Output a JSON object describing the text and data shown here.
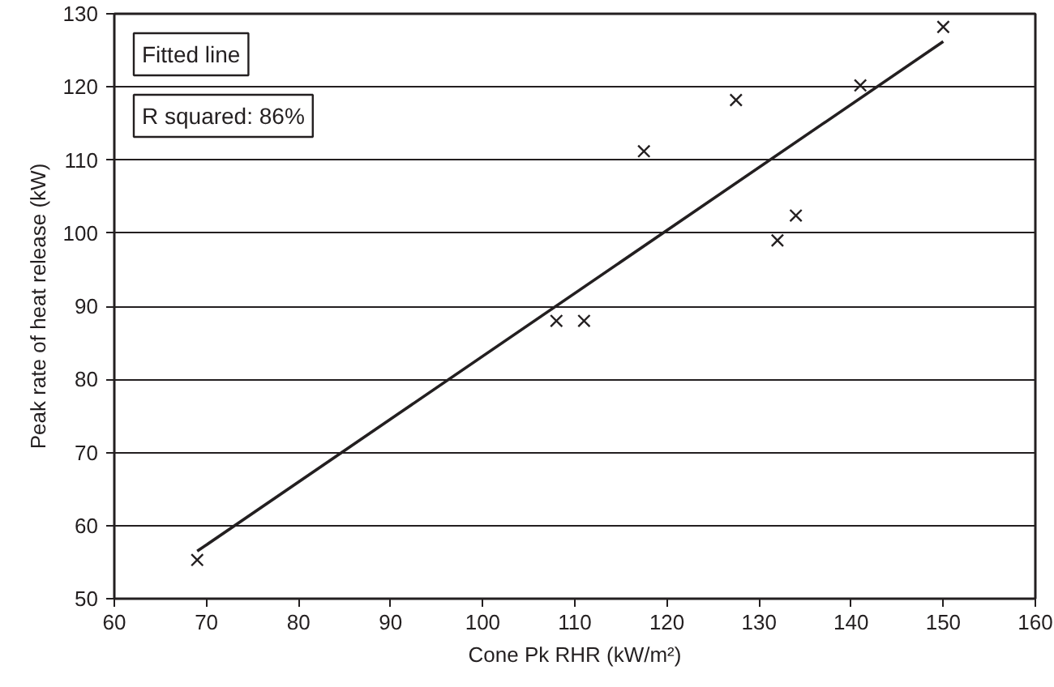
{
  "chart_data": {
    "type": "scatter",
    "xlabel": "Cone Pk RHR (kW/m²)",
    "ylabel": "Peak rate of heat release (kW)",
    "xlim": [
      60,
      160
    ],
    "xticks": [
      60,
      70,
      80,
      90,
      100,
      110,
      120,
      130,
      140,
      150,
      160
    ],
    "ylim": [
      50,
      130
    ],
    "yticks": [
      50,
      60,
      70,
      80,
      90,
      100,
      110,
      120,
      130
    ],
    "grid": "y",
    "annotations": [
      "Fitted line",
      "R squared: 86%"
    ],
    "series": [
      {
        "marker": "cross",
        "color": "#231f20",
        "x": [
          69,
          108,
          111,
          117.5,
          127.5,
          132,
          134,
          141,
          150
        ],
        "values": [
          55.3,
          88,
          88,
          111.2,
          118.2,
          99,
          102.4,
          120.2,
          128.2
        ]
      },
      {
        "type": "line",
        "marker": "none",
        "color": "#231f20",
        "x": [
          69,
          150
        ],
        "values": [
          56.5,
          126.2
        ]
      }
    ]
  }
}
